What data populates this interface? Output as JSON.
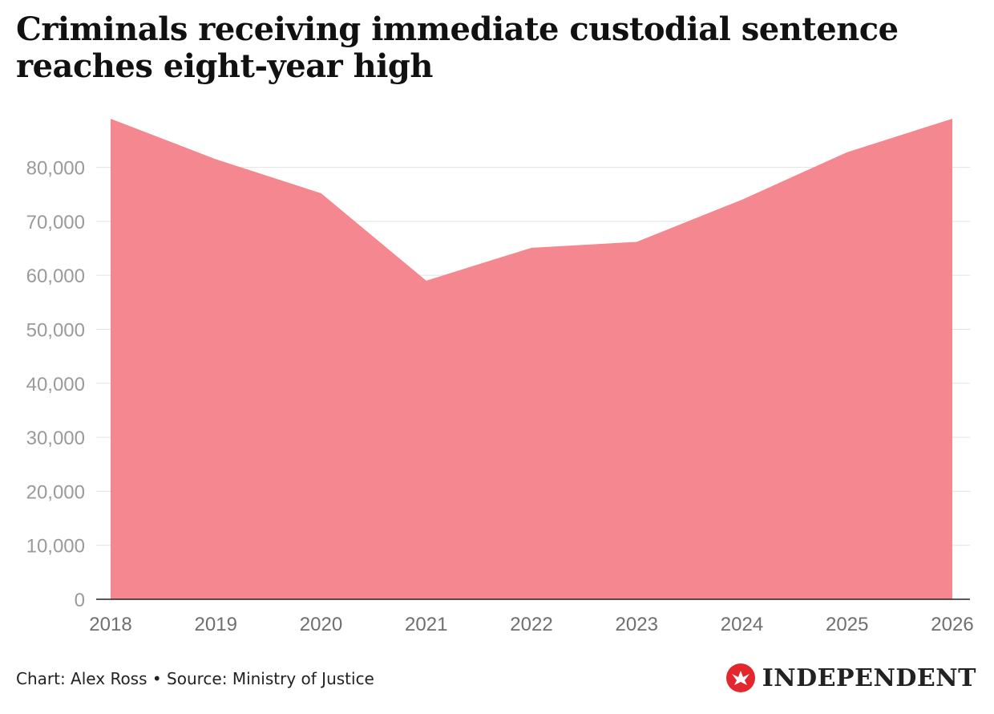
{
  "chart_data": {
    "type": "area",
    "title": "Criminals receiving immediate custodial sentence reaches eight-year high",
    "x": [
      "2018",
      "2019",
      "2020",
      "2021",
      "2022",
      "2023",
      "2024",
      "2025",
      "2026"
    ],
    "series": [
      {
        "values": [
          89000,
          81500,
          75200,
          59000,
          65100,
          66200,
          74000,
          82800,
          89000
        ]
      }
    ],
    "y_ticks": [
      "0",
      "10,000",
      "20,000",
      "30,000",
      "40,000",
      "50,000",
      "60,000",
      "70,000",
      "80,000"
    ],
    "ylim": [
      0,
      89000
    ],
    "grid": true,
    "legend": "none",
    "color": "#f4878f",
    "xlabel": "",
    "ylabel": ""
  },
  "footer": {
    "credit": "Chart: Alex Ross • Source: Ministry of Justice",
    "brand": "INDEPENDENT",
    "brand_icon": "eagle-icon",
    "brand_color": "#e4262f"
  }
}
